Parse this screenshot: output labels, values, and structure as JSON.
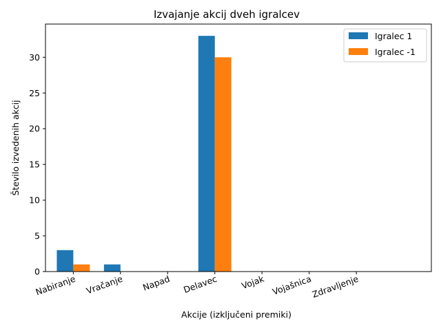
{
  "chart_data": {
    "type": "bar",
    "title": "Izvajanje akcij dveh igralcev",
    "xlabel": "Akcije (izključeni premiki)",
    "ylabel": "Število izvedenih akcij",
    "categories": [
      "Nabiranje",
      "Vračanje",
      "Napad",
      "Delavec",
      "Vojak",
      "Vojašnica",
      "Zdravljenje"
    ],
    "series": [
      {
        "name": "Igralec 1",
        "color": "#1f77b4",
        "values": [
          3,
          1,
          0,
          33,
          0,
          0,
          0
        ]
      },
      {
        "name": "Igralec -1",
        "color": "#ff7f0e",
        "values": [
          1,
          0,
          0,
          30,
          0,
          0,
          0
        ]
      }
    ],
    "ylim": [
      0,
      34.65
    ],
    "yticks": [
      0,
      5,
      10,
      15,
      20,
      25,
      30
    ],
    "legend_position": "top-right",
    "grid": false
  }
}
